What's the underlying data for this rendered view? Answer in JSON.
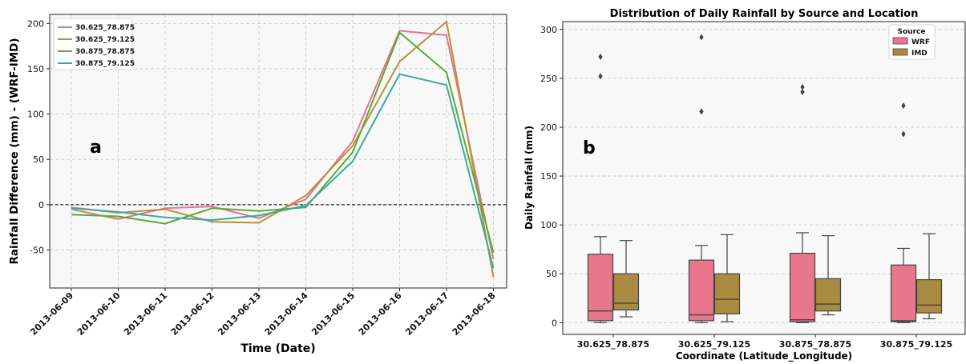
{
  "chart_data": [
    {
      "type": "line",
      "panel_label": "a",
      "title": "",
      "xlabel": "Time (Date)",
      "ylabel": "Rainfall Difference (mm) - (WRF-IMD)",
      "x": [
        "2013-06-09",
        "2013-06-10",
        "2013-06-11",
        "2013-06-12",
        "2013-06-13",
        "2013-06-14",
        "2013-06-15",
        "2013-06-16",
        "2013-06-17",
        "2013-06-18"
      ],
      "ylim": [
        -92,
        210
      ],
      "yticks": [
        -50,
        0,
        50,
        100,
        150,
        200
      ],
      "reference_line": 0,
      "grid": true,
      "legend_position": "top-left",
      "series": [
        {
          "name": "30.625_78.875",
          "color": "#e8738a",
          "values": [
            -5,
            -16,
            -4,
            -2,
            -15,
            6,
            70,
            192,
            187,
            -60
          ]
        },
        {
          "name": "30.625_79.125",
          "color": "#b5923a",
          "values": [
            -3,
            -9,
            -5,
            -19,
            -20,
            10,
            65,
            158,
            202,
            -80
          ]
        },
        {
          "name": "30.875_78.875",
          "color": "#5aaa36",
          "values": [
            -11,
            -13,
            -21,
            -4,
            -7,
            -3,
            58,
            190,
            146,
            -53
          ]
        },
        {
          "name": "30.875_79.125",
          "color": "#3aaa9e",
          "values": [
            -4,
            -8,
            -14,
            -17,
            -12,
            -1,
            48,
            144,
            132,
            -70
          ]
        }
      ]
    },
    {
      "type": "box",
      "panel_label": "b",
      "title": "Distribution of Daily Rainfall by Source and Location",
      "xlabel": "Coordinate (Latitude_Longitude)",
      "ylabel": "Daily Rainfall (mm)",
      "categories": [
        "30.625_78.875",
        "30.625_79.125",
        "30.875_78.875",
        "30.875_79.125"
      ],
      "ylim": [
        -12,
        308
      ],
      "yticks": [
        0,
        50,
        100,
        150,
        200,
        250,
        300
      ],
      "grid": true,
      "legend_title": "Source",
      "legend_position": "top-right",
      "series": [
        {
          "name": "WRF",
          "color": "#e8778d",
          "boxes": [
            {
              "whislo": 0,
              "q1": 2,
              "med": 12,
              "q3": 70,
              "whishi": 88,
              "fliers": [
                252,
                272
              ]
            },
            {
              "whislo": 0,
              "q1": 2,
              "med": 8,
              "q3": 64,
              "whishi": 79,
              "fliers": [
                216,
                292
              ]
            },
            {
              "whislo": 0,
              "q1": 1,
              "med": 3,
              "q3": 71,
              "whishi": 92,
              "fliers": [
                236,
                241
              ]
            },
            {
              "whislo": 0,
              "q1": 1,
              "med": 2,
              "q3": 59,
              "whishi": 76,
              "fliers": [
                193,
                222
              ]
            }
          ]
        },
        {
          "name": "IMD",
          "color": "#a88a40",
          "boxes": [
            {
              "whislo": 6,
              "q1": 13,
              "med": 20,
              "q3": 50,
              "whishi": 84,
              "fliers": []
            },
            {
              "whislo": 1,
              "q1": 9,
              "med": 24,
              "q3": 50,
              "whishi": 90,
              "fliers": []
            },
            {
              "whislo": 8,
              "q1": 12,
              "med": 19,
              "q3": 45,
              "whishi": 89,
              "fliers": []
            },
            {
              "whislo": 4,
              "q1": 10,
              "med": 18,
              "q3": 44,
              "whishi": 91,
              "fliers": []
            }
          ]
        }
      ]
    }
  ]
}
